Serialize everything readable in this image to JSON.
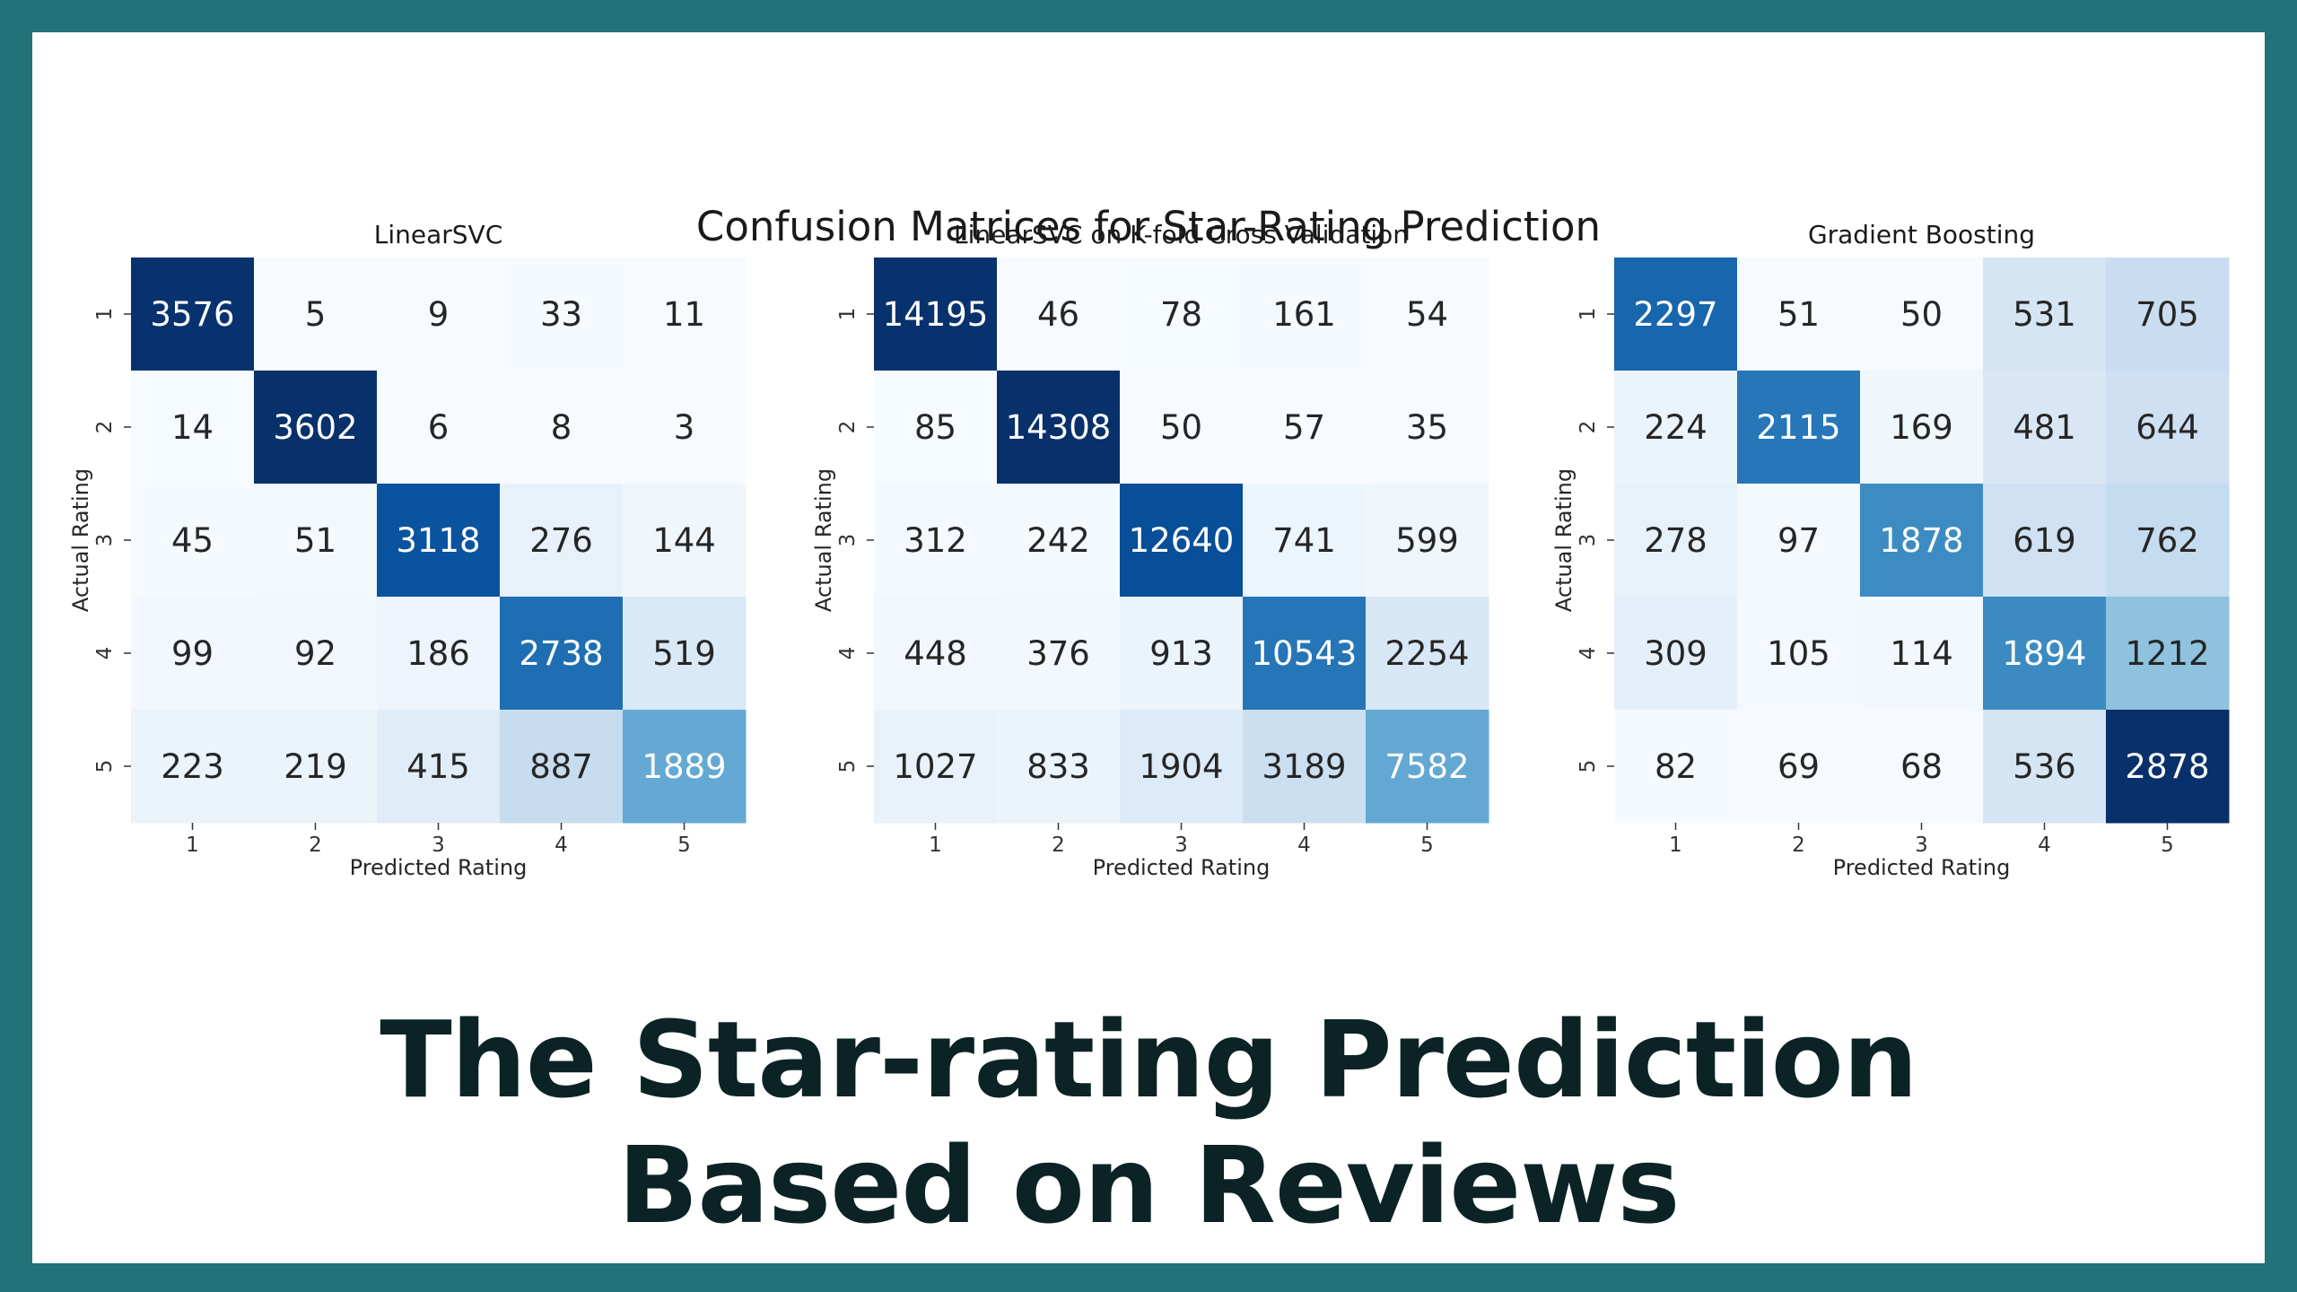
{
  "figure_title": "Confusion Matrices for Star-Rating Prediction",
  "headline": {
    "line1": "The Star-rating Prediction",
    "line2": "Based on Reviews"
  },
  "colormap": "Blues",
  "chart_data": [
    {
      "type": "heatmap",
      "title": "LinearSVC",
      "xlabel": "Predicted Rating",
      "ylabel": "Actual Rating",
      "x_categories": [
        "1",
        "2",
        "3",
        "4",
        "5"
      ],
      "y_categories": [
        "1",
        "2",
        "3",
        "4",
        "5"
      ],
      "values": [
        [
          3576,
          5,
          9,
          33,
          11
        ],
        [
          14,
          3602,
          6,
          8,
          3
        ],
        [
          45,
          51,
          3118,
          276,
          144
        ],
        [
          99,
          92,
          186,
          2738,
          519
        ],
        [
          223,
          219,
          415,
          887,
          1889
        ]
      ]
    },
    {
      "type": "heatmap",
      "title": "LinearSVC on K-fold Cross Validation",
      "xlabel": "Predicted Rating",
      "ylabel": "Actual Rating",
      "x_categories": [
        "1",
        "2",
        "3",
        "4",
        "5"
      ],
      "y_categories": [
        "1",
        "2",
        "3",
        "4",
        "5"
      ],
      "values": [
        [
          14195,
          46,
          78,
          161,
          54
        ],
        [
          85,
          14308,
          50,
          57,
          35
        ],
        [
          312,
          242,
          12640,
          741,
          599
        ],
        [
          448,
          376,
          913,
          10543,
          2254
        ],
        [
          1027,
          833,
          1904,
          3189,
          7582
        ]
      ]
    },
    {
      "type": "heatmap",
      "title": "Gradient Boosting",
      "xlabel": "Predicted Rating",
      "ylabel": "Actual Rating",
      "x_categories": [
        "1",
        "2",
        "3",
        "4",
        "5"
      ],
      "y_categories": [
        "1",
        "2",
        "3",
        "4",
        "5"
      ],
      "values": [
        [
          2297,
          51,
          50,
          531,
          705
        ],
        [
          224,
          2115,
          169,
          481,
          644
        ],
        [
          278,
          97,
          1878,
          619,
          762
        ],
        [
          309,
          105,
          114,
          1894,
          1212
        ],
        [
          82,
          69,
          68,
          536,
          2878
        ]
      ]
    }
  ]
}
